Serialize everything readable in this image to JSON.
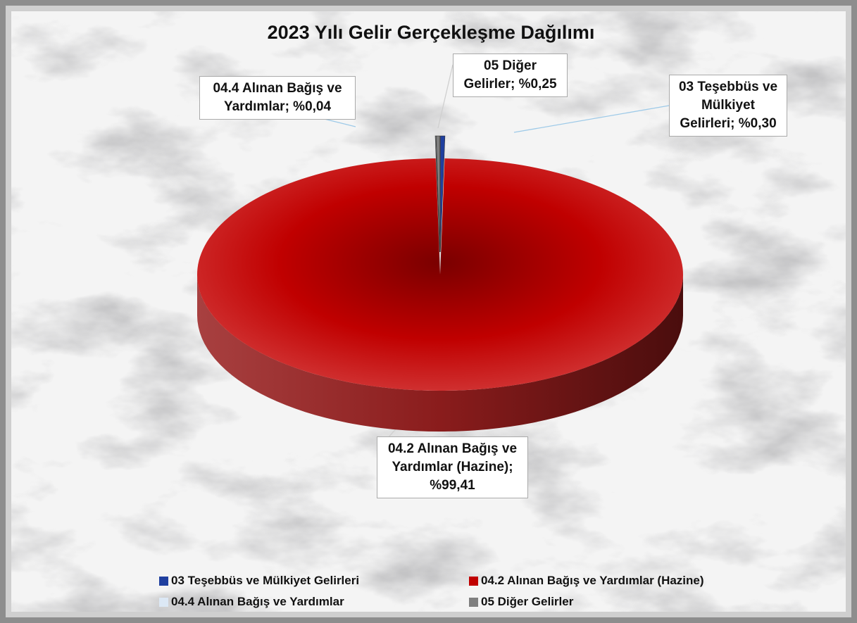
{
  "chart_data": {
    "type": "pie",
    "title": "2023 Yılı Gelir Gerçekleşme Dağılımı",
    "categories": [
      "03 Teşebbüs ve Mülkiyet Gelirleri",
      "04.2 Alınan Bağış ve Yardımlar (Hazine)",
      "04.4 Alınan Bağış ve Yardımlar",
      "05 Diğer Gelirler"
    ],
    "values": [
      0.3,
      99.41,
      0.04,
      0.25
    ],
    "value_labels": [
      "%0,30",
      "%99,41",
      "%0,04",
      "%0,25"
    ],
    "label_separator": ";",
    "colors": [
      "#1f3f9f",
      "#c00000",
      "#dce8f5",
      "#7f7f7f"
    ],
    "legend": "bottom"
  }
}
